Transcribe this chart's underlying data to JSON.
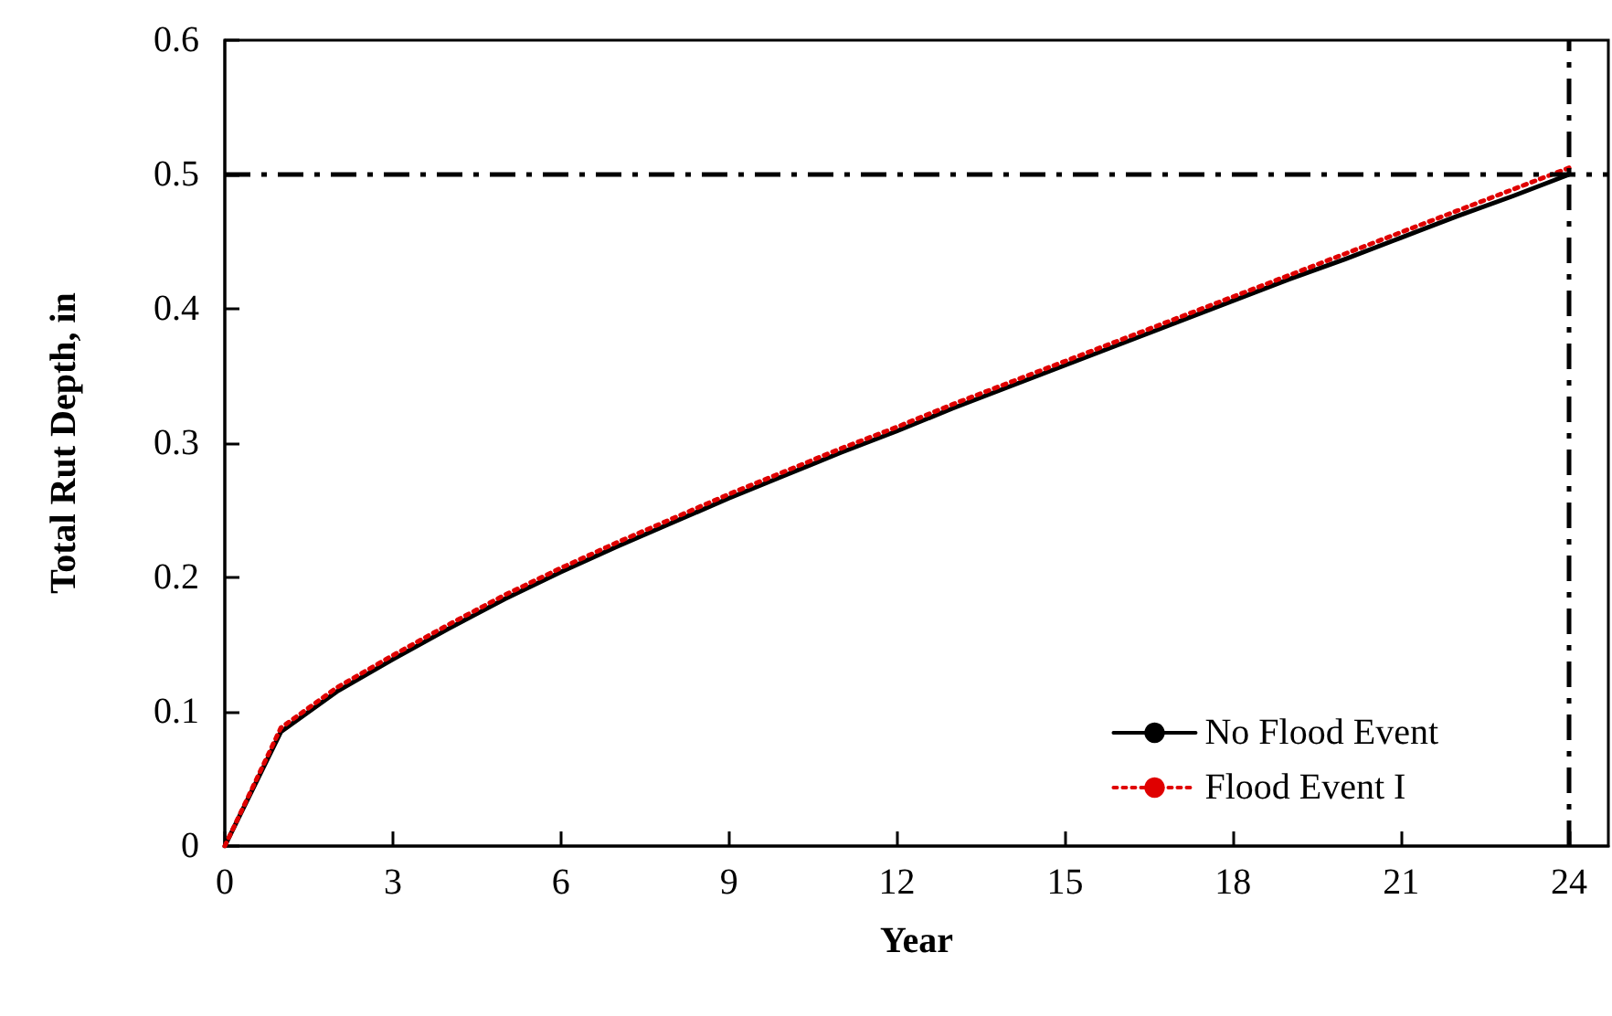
{
  "chart_data": {
    "type": "line",
    "xlabel": "Year",
    "ylabel": "Total Rut Depth, in",
    "x": [
      0,
      1,
      2,
      3,
      4,
      5,
      6,
      7,
      8,
      9,
      10,
      11,
      12,
      13,
      14,
      15,
      16,
      17,
      18,
      19,
      20,
      21,
      22,
      23,
      24
    ],
    "series": [
      {
        "name": "No Flood Event",
        "color": "#000000",
        "line_style": "solid",
        "values": [
          0,
          0.085,
          0.115,
          0.139,
          0.162,
          0.184,
          0.204,
          0.223,
          0.241,
          0.259,
          0.276,
          0.293,
          0.309,
          0.326,
          0.342,
          0.358,
          0.374,
          0.39,
          0.406,
          0.422,
          0.437,
          0.453,
          0.469,
          0.484,
          0.5
        ]
      },
      {
        "name": "Flood Event I",
        "color": "#e00000",
        "line_style": "dotted",
        "values": [
          0,
          0.088,
          0.118,
          0.142,
          0.165,
          0.187,
          0.207,
          0.226,
          0.244,
          0.262,
          0.279,
          0.296,
          0.312,
          0.329,
          0.345,
          0.361,
          0.377,
          0.393,
          0.409,
          0.425,
          0.441,
          0.457,
          0.473,
          0.489,
          0.505
        ]
      }
    ],
    "xlim": [
      0,
      24.7
    ],
    "xticks": [
      0,
      3,
      6,
      9,
      12,
      15,
      18,
      21,
      24
    ],
    "ylim": [
      0,
      0.6
    ],
    "yticks": [
      0,
      0.1,
      0.2,
      0.3,
      0.4,
      0.5,
      0.6
    ],
    "ref_lines": [
      {
        "axis": "y",
        "value": 0.5,
        "label": null,
        "color": "#000000",
        "line_style": "dashdot"
      },
      {
        "axis": "x",
        "value": 24,
        "label": null,
        "color": "#000000",
        "line_style": "dashdot"
      }
    ],
    "grid": false,
    "legend": "bottom right",
    "marker": "none"
  }
}
